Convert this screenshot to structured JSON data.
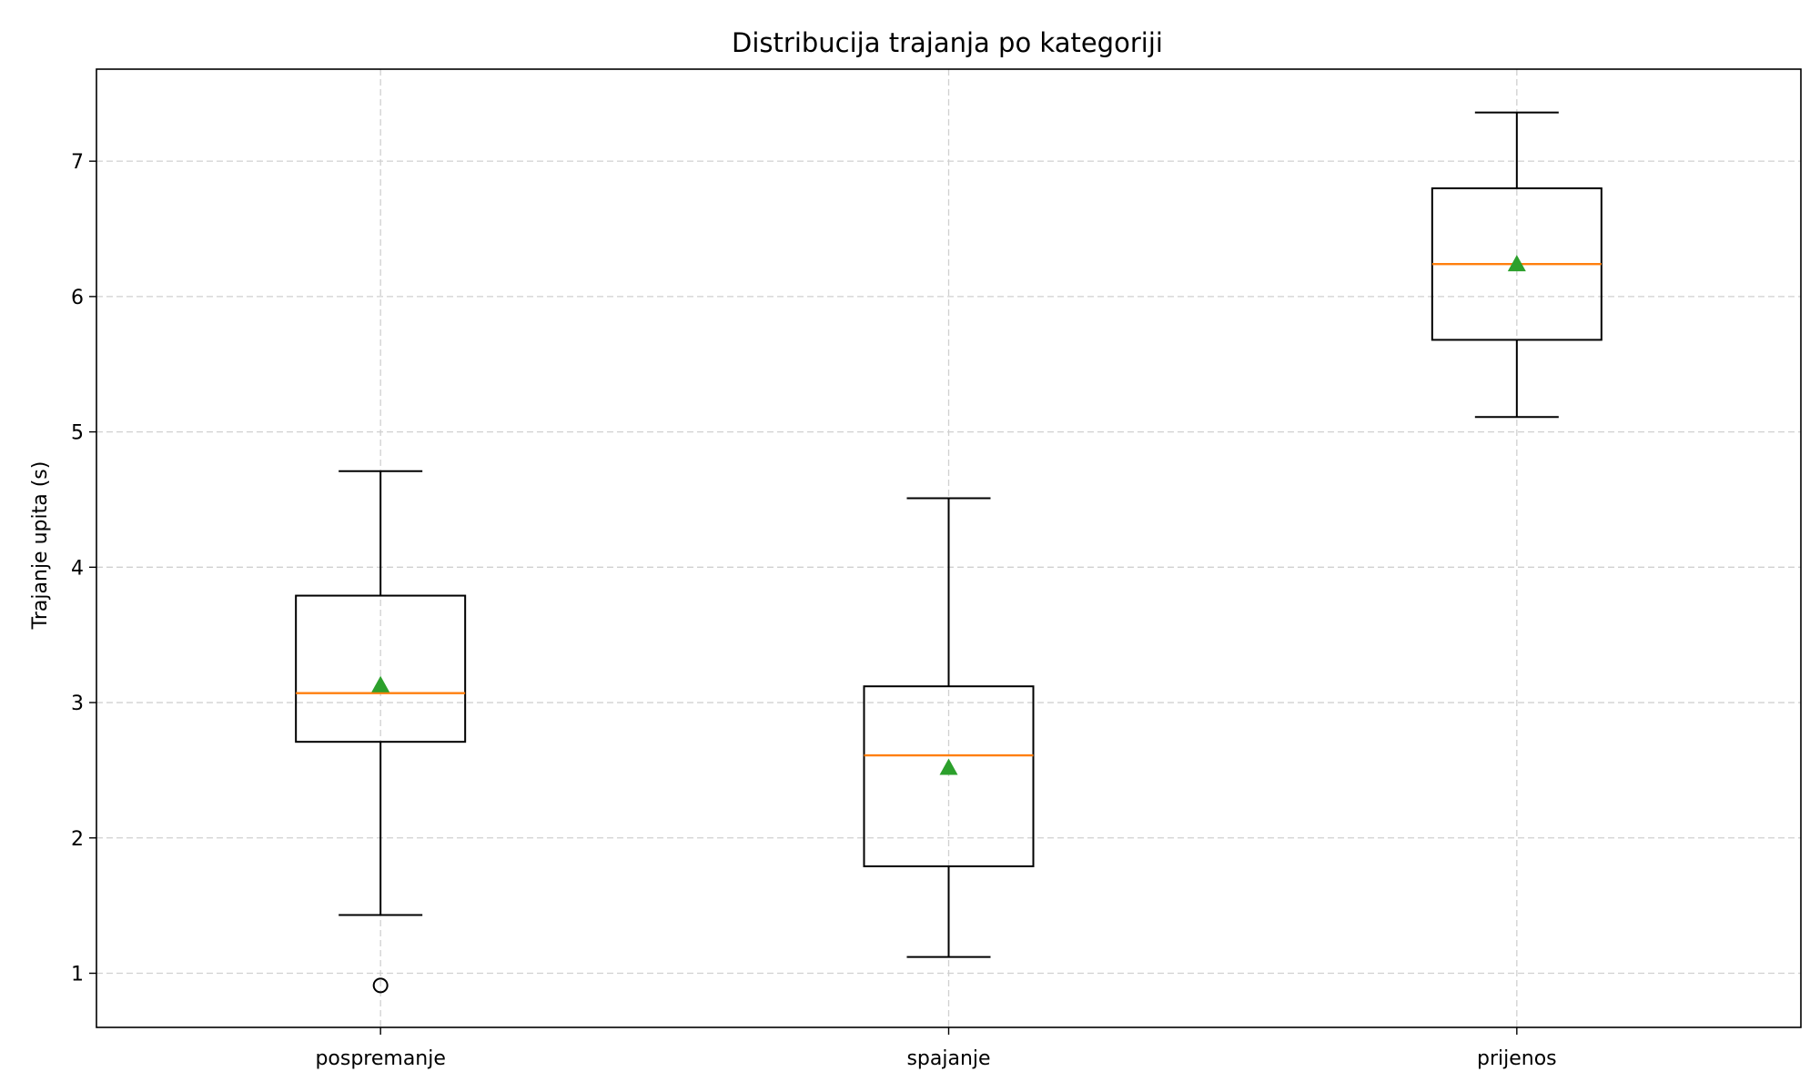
{
  "chart_data": {
    "type": "box",
    "title": "Distribucija trajanja po kategoriji",
    "xlabel": "",
    "ylabel": "Trajanje upita (s)",
    "ylim": [
      0.6,
      7.68
    ],
    "yticks": [
      1,
      2,
      3,
      4,
      5,
      6,
      7
    ],
    "grid": true,
    "categories": [
      "pospremanje",
      "spajanje",
      "prijenos"
    ],
    "boxes": [
      {
        "whisker_low": 1.43,
        "q1": 2.71,
        "median": 3.07,
        "q3": 3.79,
        "whisker_high": 4.71,
        "mean": 3.13,
        "outliers": [
          0.91
        ]
      },
      {
        "whisker_low": 1.12,
        "q1": 1.79,
        "median": 2.61,
        "q3": 3.12,
        "whisker_high": 4.51,
        "mean": 2.52,
        "outliers": []
      },
      {
        "whisker_low": 5.11,
        "q1": 5.68,
        "median": 6.24,
        "q3": 6.8,
        "whisker_high": 7.36,
        "mean": 6.24,
        "outliers": []
      }
    ],
    "colors": {
      "box": "#000000",
      "median": "#ff7f0e",
      "mean": "#2ca02c",
      "grid": "#d0d0d0"
    }
  }
}
